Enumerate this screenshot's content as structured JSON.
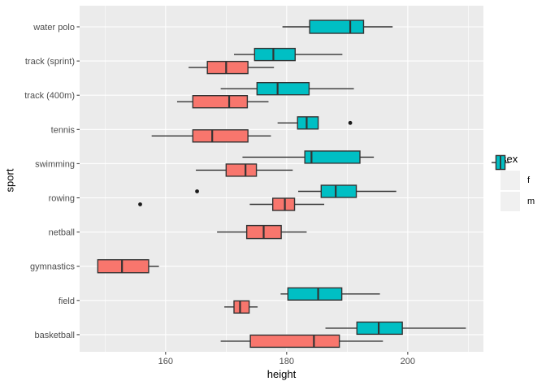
{
  "figure": {
    "background": "#FFFFFF"
  },
  "chart_data": {
    "type": "boxplot",
    "orientation": "horizontal",
    "xlabel": "height",
    "ylabel": "sport",
    "xlim": [
      145.8,
      212.5
    ],
    "x_major_ticks": [
      160,
      180,
      200
    ],
    "x_minor_ticks": [
      150,
      170,
      190,
      210
    ],
    "panel_background": "#EBEBEB",
    "gridline_color": "#FFFFFF",
    "box_stroke_color": "#333333",
    "axis_text_color": "#4D4D4D",
    "categories": [
      "water polo",
      "track (sprint)",
      "track (400m)",
      "tennis",
      "swimming",
      "rowing",
      "netball",
      "gymnastics",
      "field",
      "basketball"
    ],
    "series_colors": {
      "f": "#F8766D",
      "m": "#00BFC4"
    },
    "rows": [
      {
        "sport": "water polo",
        "boxes": [
          {
            "sex": "m",
            "whisker_low": 179.3,
            "q1": 183.8,
            "median": 190.5,
            "q3": 192.7,
            "whisker_high": 197.5,
            "outliers": []
          }
        ]
      },
      {
        "sport": "track (sprint)",
        "boxes": [
          {
            "sex": "m",
            "whisker_low": 171.3,
            "q1": 174.7,
            "median": 177.8,
            "q3": 181.4,
            "whisker_high": 189.2,
            "outliers": []
          },
          {
            "sex": "f",
            "whisker_low": 163.8,
            "q1": 166.9,
            "median": 170.0,
            "q3": 173.6,
            "whisker_high": 177.9,
            "outliers": []
          }
        ]
      },
      {
        "sport": "track (400m)",
        "boxes": [
          {
            "sex": "m",
            "whisker_low": 169.1,
            "q1": 175.1,
            "median": 178.5,
            "q3": 183.7,
            "whisker_high": 191.1,
            "outliers": []
          },
          {
            "sex": "f",
            "whisker_low": 161.9,
            "q1": 164.5,
            "median": 170.5,
            "q3": 173.5,
            "whisker_high": 177.0,
            "outliers": []
          }
        ]
      },
      {
        "sport": "tennis",
        "boxes": [
          {
            "sex": "m",
            "whisker_low": 178.5,
            "q1": 181.8,
            "median": 183.3,
            "q3": 185.2,
            "whisker_high": 185.2,
            "outliers": [
              190.5
            ]
          },
          {
            "sex": "f",
            "whisker_low": 157.7,
            "q1": 164.5,
            "median": 167.7,
            "q3": 173.6,
            "whisker_high": 177.4,
            "outliers": []
          }
        ]
      },
      {
        "sport": "swimming",
        "boxes": [
          {
            "sex": "m",
            "whisker_low": 172.7,
            "q1": 183.0,
            "median": 184.1,
            "q3": 192.1,
            "whisker_high": 194.4,
            "outliers": []
          },
          {
            "sex": "f",
            "whisker_low": 165.0,
            "q1": 170.0,
            "median": 173.2,
            "q3": 175.0,
            "whisker_high": 181.0,
            "outliers": []
          }
        ]
      },
      {
        "sport": "rowing",
        "boxes": [
          {
            "sex": "m",
            "whisker_low": 181.9,
            "q1": 185.7,
            "median": 188.1,
            "q3": 191.5,
            "whisker_high": 198.1,
            "outliers": [
              165.2
            ]
          },
          {
            "sex": "f",
            "whisker_low": 173.9,
            "q1": 177.7,
            "median": 179.7,
            "q3": 181.3,
            "whisker_high": 186.2,
            "outliers": [
              155.8
            ]
          }
        ]
      },
      {
        "sport": "netball",
        "boxes": [
          {
            "sex": "f",
            "whisker_low": 168.5,
            "q1": 173.4,
            "median": 176.2,
            "q3": 179.1,
            "whisker_high": 183.3,
            "outliers": []
          }
        ]
      },
      {
        "sport": "gymnastics",
        "boxes": [
          {
            "sex": "f",
            "whisker_low": 148.8,
            "q1": 148.8,
            "median": 152.8,
            "q3": 157.2,
            "whisker_high": 158.9,
            "outliers": []
          }
        ]
      },
      {
        "sport": "field",
        "boxes": [
          {
            "sex": "m",
            "whisker_low": 179.0,
            "q1": 180.2,
            "median": 185.2,
            "q3": 189.1,
            "whisker_high": 195.4,
            "outliers": []
          },
          {
            "sex": "f",
            "whisker_low": 169.7,
            "q1": 171.3,
            "median": 172.3,
            "q3": 173.8,
            "whisker_high": 175.2,
            "outliers": []
          }
        ]
      },
      {
        "sport": "basketball",
        "boxes": [
          {
            "sex": "m",
            "whisker_low": 186.4,
            "q1": 191.6,
            "median": 195.2,
            "q3": 199.1,
            "whisker_high": 209.6,
            "outliers": []
          },
          {
            "sex": "f",
            "whisker_low": 169.1,
            "q1": 174.0,
            "median": 184.5,
            "q3": 188.7,
            "whisker_high": 195.9,
            "outliers": []
          }
        ]
      }
    ],
    "legend": {
      "title": "sex",
      "position": "right",
      "items": [
        {
          "label": "f",
          "color": "#F8766D"
        },
        {
          "label": "m",
          "color": "#00BFC4"
        }
      ]
    }
  }
}
